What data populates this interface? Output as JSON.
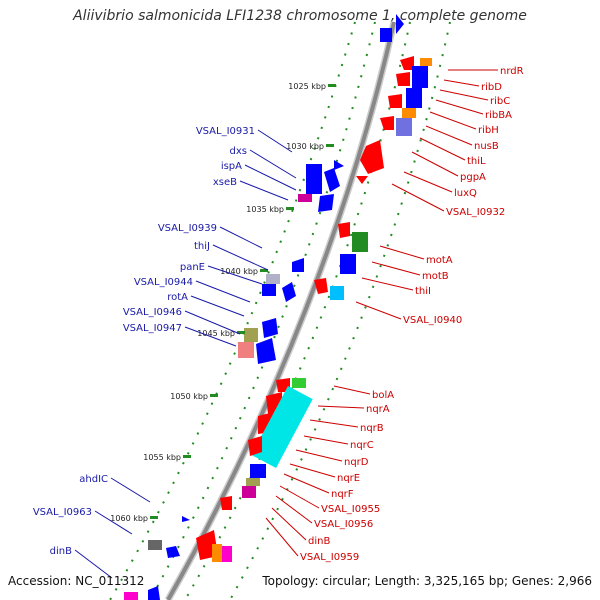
{
  "title": "Aliivibrio salmonicida LFI1238 chromosome 1, complete genome",
  "footer": {
    "accession": "Accession: NC_011312",
    "topology": "Topology: circular; Length: 3,325,165 bp; Genes: 2,966"
  },
  "colors": {
    "backbone": "#999999",
    "dots": "#228b22",
    "left_label": "#1a1aa8",
    "right_label": "#cc0000",
    "left_feature": "#0000ff",
    "right_feature": "#ff0000"
  },
  "ticks": [
    "1025 kbp",
    "1030 kbp",
    "1035 kbp",
    "1040 kbp",
    "1045 kbp",
    "1050 kbp",
    "1055 kbp",
    "1060 kbp"
  ],
  "left_labels": [
    "VSAL_I0931",
    "dxs",
    "ispA",
    "xseB",
    "VSAL_I0939",
    "thiJ",
    "panE",
    "VSAL_I0944",
    "rotA",
    "VSAL_I0946",
    "VSAL_I0947",
    "ahdIC",
    "VSAL_I0963",
    "dinB"
  ],
  "right_labels": [
    "nrdR",
    "ribD",
    "ribC",
    "ribBA",
    "ribH",
    "nusB",
    "thiL",
    "pgpA",
    "luxQ",
    "VSAL_I0932",
    "motA",
    "motB",
    "thiI",
    "VSAL_I0940",
    "bolA",
    "nqrA",
    "nqrB",
    "nqrC",
    "nqrD",
    "nqrE",
    "nqrF",
    "VSAL_I0955",
    "VSAL_I0956",
    "dinB",
    "VSAL_I0959"
  ]
}
